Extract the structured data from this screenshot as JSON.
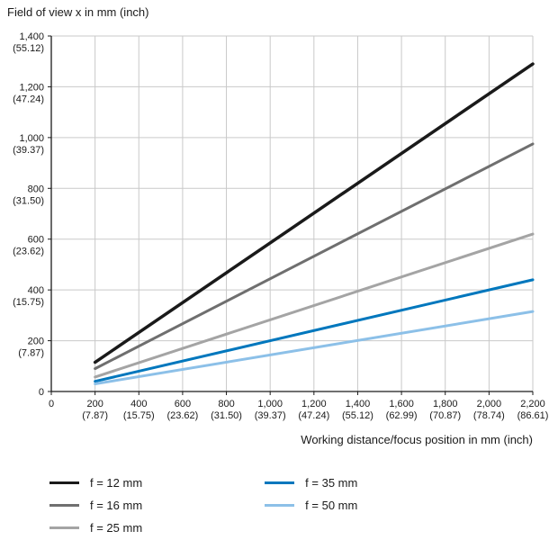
{
  "chart_data": {
    "type": "line",
    "title": "Field of view x in mm (inch)",
    "xlabel": "Working distance/focus position in mm (inch)",
    "ylabel": "Field of view x in mm (inch)",
    "xlim": [
      0,
      2200
    ],
    "ylim": [
      0,
      1400
    ],
    "grid": true,
    "grid_color": "#c9c9c9",
    "axis_color": "#1a1a1a",
    "legend_position": "bottom-left",
    "x_ticks": [
      {
        "value": 0,
        "label": "0",
        "inch": ""
      },
      {
        "value": 200,
        "label": "200",
        "inch": "(7.87)"
      },
      {
        "value": 400,
        "label": "400",
        "inch": "(15.75)"
      },
      {
        "value": 600,
        "label": "600",
        "inch": "(23.62)"
      },
      {
        "value": 800,
        "label": "800",
        "inch": "(31.50)"
      },
      {
        "value": 1000,
        "label": "1,000",
        "inch": "(39.37)"
      },
      {
        "value": 1200,
        "label": "1,200",
        "inch": "(47.24)"
      },
      {
        "value": 1400,
        "label": "1,400",
        "inch": "(55.12)"
      },
      {
        "value": 1600,
        "label": "1,600",
        "inch": "(62.99)"
      },
      {
        "value": 1800,
        "label": "1,800",
        "inch": "(70.87)"
      },
      {
        "value": 2000,
        "label": "2,000",
        "inch": "(78.74)"
      },
      {
        "value": 2200,
        "label": "2,200",
        "inch": "(86.61)"
      }
    ],
    "y_ticks": [
      {
        "value": 0,
        "label": "0",
        "inch": ""
      },
      {
        "value": 200,
        "label": "200",
        "inch": "(7.87)"
      },
      {
        "value": 400,
        "label": "400",
        "inch": "(15.75)"
      },
      {
        "value": 600,
        "label": "600",
        "inch": "(23.62)"
      },
      {
        "value": 800,
        "label": "800",
        "inch": "(31.50)"
      },
      {
        "value": 1000,
        "label": "1,000",
        "inch": "(39.37)"
      },
      {
        "value": 1200,
        "label": "1,200",
        "inch": "(47.24)"
      },
      {
        "value": 1400,
        "label": "1,400",
        "inch": "(55.12)"
      }
    ],
    "series": [
      {
        "name": "f = 12 mm",
        "color": "#1a1a1a",
        "width": 3.5,
        "x": [
          200,
          2200
        ],
        "y": [
          115,
          1290
        ]
      },
      {
        "name": "f = 16 mm",
        "color": "#6f6f6f",
        "width": 3,
        "x": [
          200,
          2200
        ],
        "y": [
          90,
          975
        ]
      },
      {
        "name": "f = 25 mm",
        "color": "#a4a4a4",
        "width": 3,
        "x": [
          200,
          2200
        ],
        "y": [
          57,
          620
        ]
      },
      {
        "name": "f = 35 mm",
        "color": "#0077bd",
        "width": 3,
        "x": [
          200,
          2200
        ],
        "y": [
          40,
          440
        ]
      },
      {
        "name": "f = 50 mm",
        "color": "#8cc0e8",
        "width": 3,
        "x": [
          200,
          2200
        ],
        "y": [
          30,
          315
        ]
      }
    ]
  },
  "legend": {
    "columns": [
      [
        {
          "label": "f = 12 mm",
          "color": "#1a1a1a"
        },
        {
          "label": "f = 16 mm",
          "color": "#6f6f6f"
        },
        {
          "label": "f = 25 mm",
          "color": "#a4a4a4"
        }
      ],
      [
        {
          "label": "f = 35 mm",
          "color": "#0077bd"
        },
        {
          "label": "f = 50 mm",
          "color": "#8cc0e8"
        }
      ]
    ]
  }
}
